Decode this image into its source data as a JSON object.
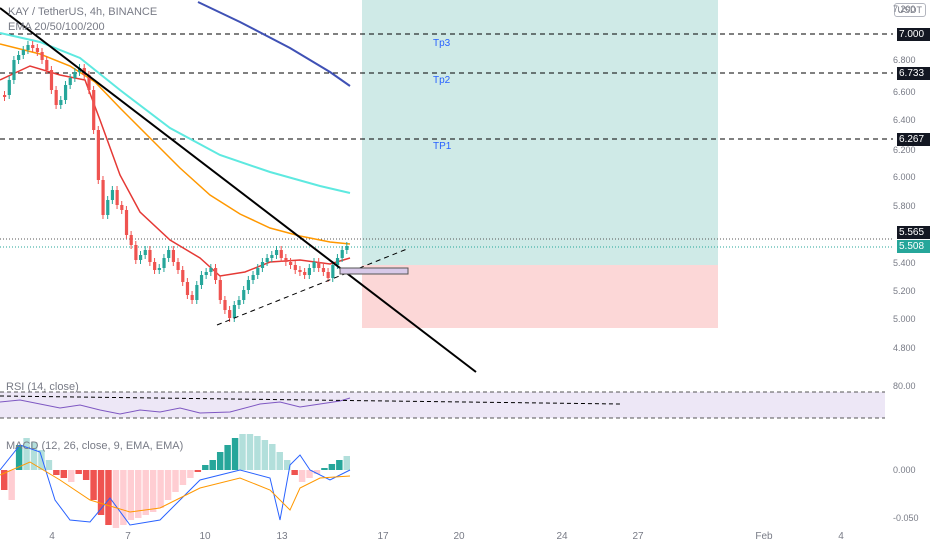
{
  "header": {
    "symbol_line": "KAY / TetherUS, 4h, BINANCE",
    "ema_line": "EMA 20/50/100/200",
    "currency": "USDT"
  },
  "targets": {
    "tp3": "Tp3",
    "tp2": "Tp2",
    "tp1": "TP1"
  },
  "price_tags": {
    "t7000": "7.000",
    "t6733": "6.733",
    "t6267": "6.267",
    "t5565": "5.565",
    "t5508": "5.508"
  },
  "price_axis": [
    "7.200",
    "6.800",
    "6.600",
    "6.400",
    "6.200",
    "6.000",
    "5.800",
    "5.400",
    "5.200",
    "5.000",
    "4.800"
  ],
  "rsi": {
    "label": "RSI (14, close)",
    "axis": "80.00"
  },
  "macd": {
    "label": "MACD (12, 26, close, 9, EMA, EMA)",
    "axis_top": "0.000",
    "axis_bottom": "-0.050"
  },
  "time_axis": [
    "4",
    "7",
    "10",
    "13",
    "17",
    "20",
    "24",
    "27",
    "Feb",
    "4"
  ],
  "colors": {
    "up": "#26a69a",
    "down": "#ef5350",
    "profit_zone": "#cfeae7",
    "loss_zone": "#fcd7d7",
    "ema20": "#e53935",
    "ema50": "#ff9800",
    "ema100": "#5ee9e0",
    "ema200": "#3f51b5",
    "macd_line": "#2962ff",
    "signal_line": "#ff9800"
  }
}
